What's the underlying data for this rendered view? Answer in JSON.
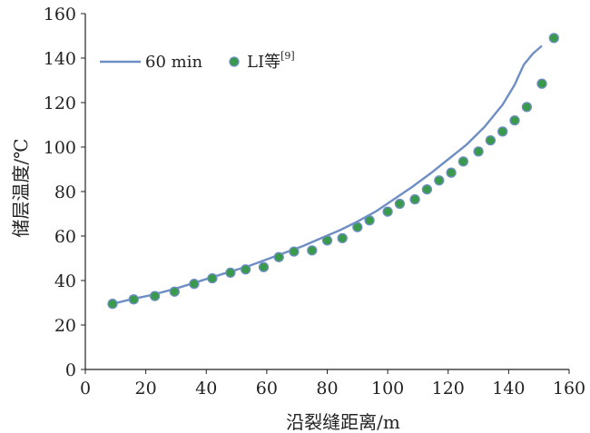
{
  "chart_data": {
    "type": "line",
    "xlabel": "沿裂缝距离/m",
    "ylabel": "储层温度/℃",
    "xlim": [
      0,
      160
    ],
    "ylim": [
      0,
      160
    ],
    "x_ticks": [
      0,
      20,
      40,
      60,
      80,
      100,
      120,
      140,
      160
    ],
    "y_ticks": [
      0,
      20,
      40,
      60,
      80,
      100,
      120,
      140,
      160
    ],
    "grid": false,
    "legend_position": "top-left",
    "series": [
      {
        "name": "60 min",
        "kind": "line",
        "color": "#6f8fc4",
        "x": [
          9,
          15,
          22,
          29,
          35,
          42,
          48,
          54,
          60,
          66,
          72,
          78,
          84,
          90,
          96,
          102,
          108,
          114,
          120,
          126,
          132,
          138,
          142,
          145,
          148,
          151
        ],
        "y": [
          29.5,
          31.5,
          33.5,
          36,
          38.5,
          41.5,
          44,
          46.5,
          49.5,
          52.5,
          55.5,
          59,
          62.5,
          66.5,
          71,
          76.5,
          82,
          88,
          94.5,
          101,
          109,
          119,
          128,
          137,
          142,
          145.5
        ]
      },
      {
        "name": "LI等",
        "name_sup": "[9]",
        "kind": "scatter",
        "color": "#3a9a4c",
        "edge_color": "#6f8fc4",
        "x": [
          9,
          16,
          23,
          29.5,
          36,
          42,
          48,
          53,
          59,
          64,
          69,
          75,
          80,
          85,
          90,
          94,
          100,
          104,
          109,
          113,
          117,
          121,
          125,
          130,
          134,
          138,
          142,
          146,
          151,
          155
        ],
        "y": [
          29.5,
          31.5,
          33,
          35,
          38.5,
          41,
          43.5,
          45,
          46,
          50.5,
          53,
          53.5,
          58,
          59,
          64,
          67,
          71,
          74.5,
          76.5,
          81,
          85,
          88.5,
          93.5,
          98,
          103,
          107,
          112,
          118,
          128.5,
          149
        ]
      }
    ]
  }
}
